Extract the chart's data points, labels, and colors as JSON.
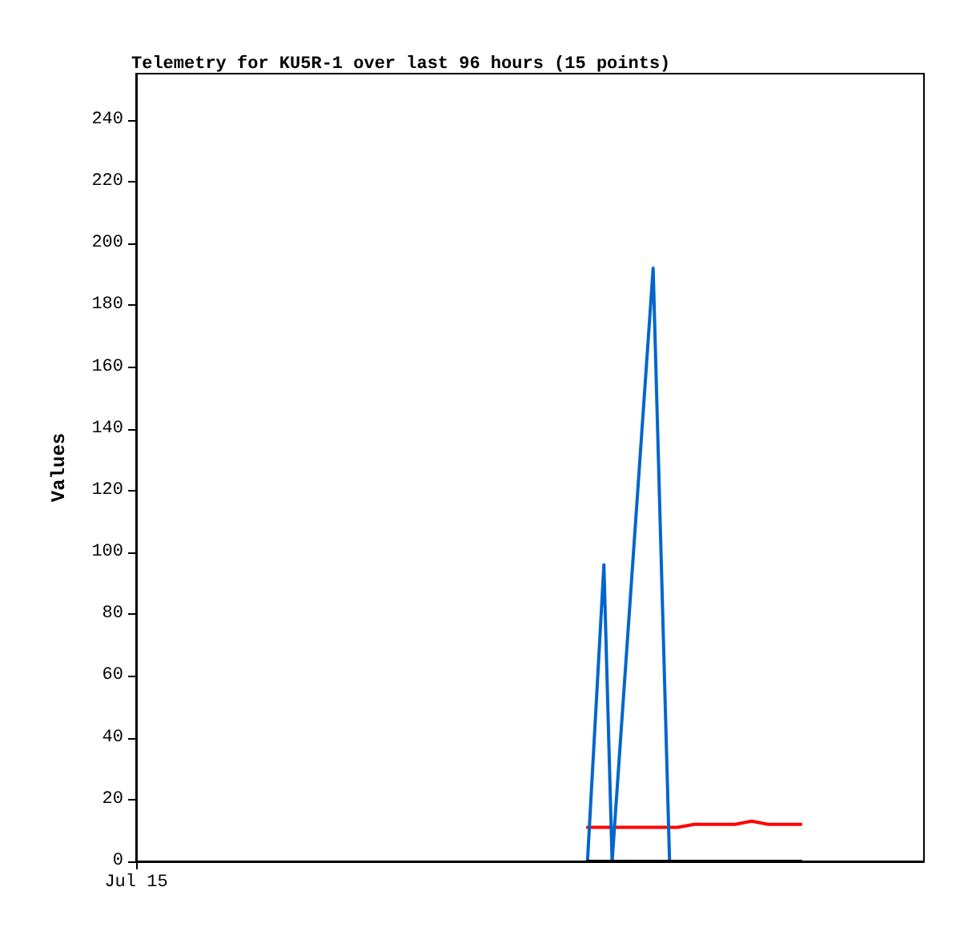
{
  "chart_data": {
    "type": "line",
    "title": "Telemetry for KU5R-1 over last 96 hours (15 points)",
    "ylabel": "Values",
    "categories": [
      "Jul 15",
      null,
      null,
      null,
      null,
      null,
      null,
      null,
      null,
      null,
      null,
      null,
      null,
      null,
      null,
      null,
      null,
      null,
      null,
      null,
      null,
      null,
      null,
      null,
      null,
      null,
      null,
      null,
      null,
      null,
      null,
      null,
      null,
      null,
      null,
      null,
      null,
      null,
      null,
      null,
      null,
      null,
      null,
      null,
      null,
      null,
      null,
      null,
      null,
      null,
      null,
      null,
      null,
      null,
      null,
      null,
      null,
      null,
      null,
      null,
      null,
      null,
      null,
      null,
      null,
      null,
      null,
      null,
      null,
      null,
      null,
      null,
      null,
      null,
      null,
      null,
      null,
      null,
      null,
      null,
      null,
      null,
      null,
      null,
      null,
      null,
      null,
      null,
      null,
      null,
      null,
      null,
      null,
      null,
      null,
      null,
      null
    ],
    "ylim": [
      0,
      255
    ],
    "yticks": [
      0,
      20,
      40,
      60,
      80,
      100,
      120,
      140,
      160,
      180,
      200,
      220,
      240
    ],
    "grid": false,
    "marker": "none",
    "line_style": "solid",
    "series": [
      {
        "color": "#ff0000",
        "values": [
          null,
          null,
          null,
          null,
          null,
          null,
          null,
          null,
          null,
          null,
          null,
          null,
          null,
          null,
          null,
          null,
          null,
          null,
          null,
          null,
          null,
          null,
          null,
          null,
          null,
          null,
          null,
          null,
          null,
          null,
          null,
          null,
          null,
          null,
          null,
          null,
          null,
          null,
          null,
          null,
          null,
          null,
          null,
          null,
          null,
          null,
          null,
          null,
          null,
          null,
          null,
          null,
          null,
          null,
          null,
          11,
          null,
          null,
          null,
          null,
          null,
          null,
          null,
          null,
          null,
          null,
          11,
          null,
          12,
          null,
          null,
          null,
          null,
          12,
          null,
          13,
          null,
          12,
          null,
          null,
          null,
          12,
          null,
          null,
          null,
          null,
          null,
          null,
          null,
          null,
          null,
          null,
          null,
          null,
          null,
          null,
          null
        ]
      },
      {
        "color": "#0066cc",
        "values": [
          null,
          null,
          null,
          null,
          null,
          null,
          null,
          null,
          null,
          null,
          null,
          null,
          null,
          null,
          null,
          null,
          null,
          null,
          null,
          null,
          null,
          null,
          null,
          null,
          null,
          null,
          null,
          null,
          null,
          null,
          null,
          null,
          null,
          null,
          null,
          null,
          null,
          null,
          null,
          null,
          null,
          null,
          null,
          null,
          null,
          null,
          null,
          null,
          null,
          null,
          null,
          null,
          null,
          null,
          null,
          0,
          null,
          96,
          0,
          null,
          null,
          null,
          null,
          192,
          null,
          0,
          null,
          null,
          null,
          null,
          null,
          null,
          null,
          null,
          null,
          null,
          null,
          null,
          null,
          null,
          null,
          0,
          null,
          null,
          null,
          null,
          null,
          null,
          null,
          null,
          null,
          null,
          null,
          null,
          null,
          null,
          null
        ]
      },
      {
        "color": "#000000",
        "values": [
          null,
          null,
          null,
          null,
          null,
          null,
          null,
          null,
          null,
          null,
          null,
          null,
          null,
          null,
          null,
          null,
          null,
          null,
          null,
          null,
          null,
          null,
          null,
          null,
          null,
          null,
          null,
          null,
          null,
          null,
          null,
          null,
          null,
          null,
          null,
          null,
          null,
          null,
          null,
          null,
          null,
          null,
          null,
          null,
          null,
          null,
          null,
          null,
          null,
          null,
          null,
          null,
          null,
          null,
          null,
          0,
          null,
          null,
          null,
          null,
          null,
          null,
          null,
          null,
          null,
          null,
          null,
          null,
          null,
          null,
          null,
          null,
          null,
          null,
          null,
          null,
          null,
          null,
          null,
          null,
          null,
          0,
          null,
          null,
          null,
          null,
          null,
          null,
          null,
          null,
          null,
          null,
          null,
          null,
          null,
          null,
          null
        ]
      }
    ]
  }
}
